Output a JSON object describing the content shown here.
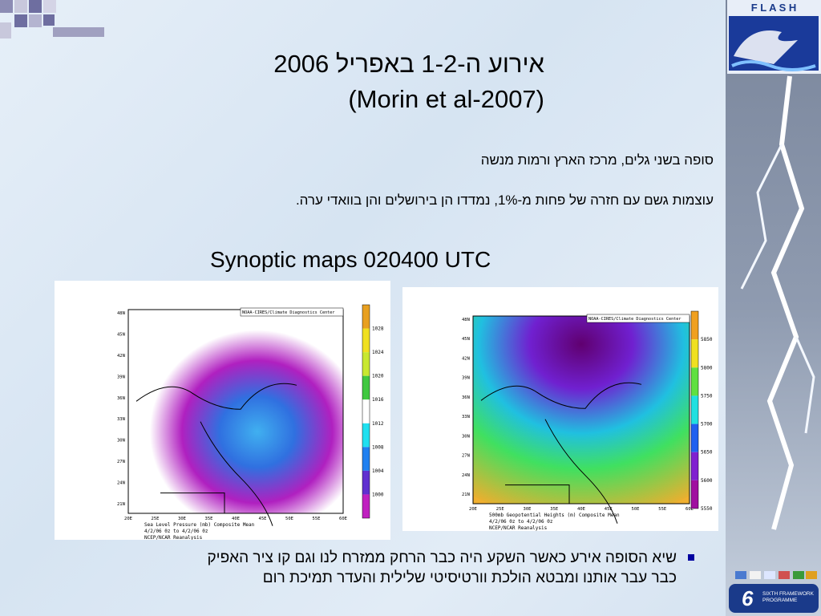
{
  "logo": {
    "text": "F L A S H"
  },
  "title": {
    "line1": "אירוע ה-1-2 באפריל 2006",
    "line2": "(Morin et al-2007)"
  },
  "paragraphs": [
    "סופה בשני גלים, מרכז הארץ ורמות מנשה",
    "עוצמות גשם עם חזרה של פחות מ-1%, נמדדו הן בירושלים והן בוואדי ערה."
  ],
  "subtitle": "Synoptic maps 020400 UTC",
  "maps": [
    {
      "header": "NOAA-CIRES/Climate Diagnostics Center",
      "lat_labels": [
        "48N",
        "45N",
        "42N",
        "39N",
        "36N",
        "33N",
        "30N",
        "27N",
        "24N",
        "21N"
      ],
      "lon_labels": [
        "20E",
        "25E",
        "30E",
        "35E",
        "40E",
        "45E",
        "50E",
        "55E",
        "60E"
      ],
      "colorbar": [
        "1028",
        "1024",
        "1020",
        "1016",
        "1012",
        "1008",
        "1004",
        "1000"
      ],
      "caption": [
        "Sea Level Pressure (mb)   Composite Mean",
        "4/2/06 0z  to 4/2/06 0z",
        "NCEP/NCAR Reanalysis"
      ]
    },
    {
      "header": "NOAA-CIRES/Climate Diagnostics Center",
      "lat_labels": [
        "48N",
        "45N",
        "42N",
        "39N",
        "36N",
        "33N",
        "30N",
        "27N",
        "24N",
        "21N"
      ],
      "lon_labels": [
        "20E",
        "25E",
        "30E",
        "35E",
        "40E",
        "45E",
        "50E",
        "55E",
        "60E"
      ],
      "colorbar": [
        "5850",
        "5800",
        "5750",
        "5700",
        "5650",
        "5600",
        "5550"
      ],
      "caption": [
        "500mb Geopotential Heights (m)   Composite Mean",
        "4/2/06 0z  to 4/2/06 0z",
        "NCEP/NCAR Reanalysis"
      ]
    }
  ],
  "bullet": [
    "שיא הסופה אירע כאשר השקע היה כבר הרחק ממזרח לנו וגם קו ציר האפיק",
    "כבר עבר אותנו ומבטא הולכת וורטיסיטי שלילית והעדר תמיכת רום"
  ],
  "footer": {
    "program": [
      "SIXTH FRAMEWORK",
      "PROGRAMME"
    ]
  }
}
